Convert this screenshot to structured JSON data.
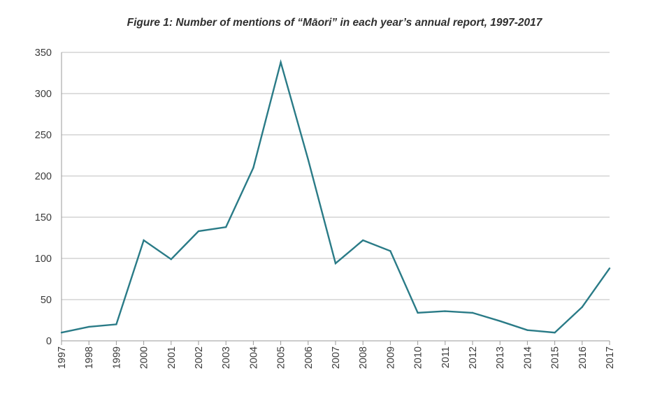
{
  "chart_data": {
    "type": "line",
    "title": "Figure 1: Number of mentions of “Māori” in each year’s annual report, 1997-2017",
    "xlabel": "",
    "ylabel": "",
    "categories": [
      "1997",
      "1998",
      "1999",
      "2000",
      "2001",
      "2002",
      "2003",
      "2004",
      "2005",
      "2006",
      "2007",
      "2008",
      "2009",
      "2010",
      "2011",
      "2012",
      "2013",
      "2014",
      "2015",
      "2016",
      "2017"
    ],
    "series": [
      {
        "values": [
          10,
          17,
          20,
          122,
          99,
          133,
          138,
          210,
          338,
          220,
          94,
          122,
          109,
          34,
          36,
          34,
          24,
          13,
          10,
          41,
          88
        ]
      }
    ],
    "ylim": [
      0,
      350
    ],
    "yticks": [
      0,
      50,
      100,
      150,
      200,
      250,
      300,
      350
    ],
    "grid": "horizontal",
    "line_color": "#2a7b87"
  }
}
